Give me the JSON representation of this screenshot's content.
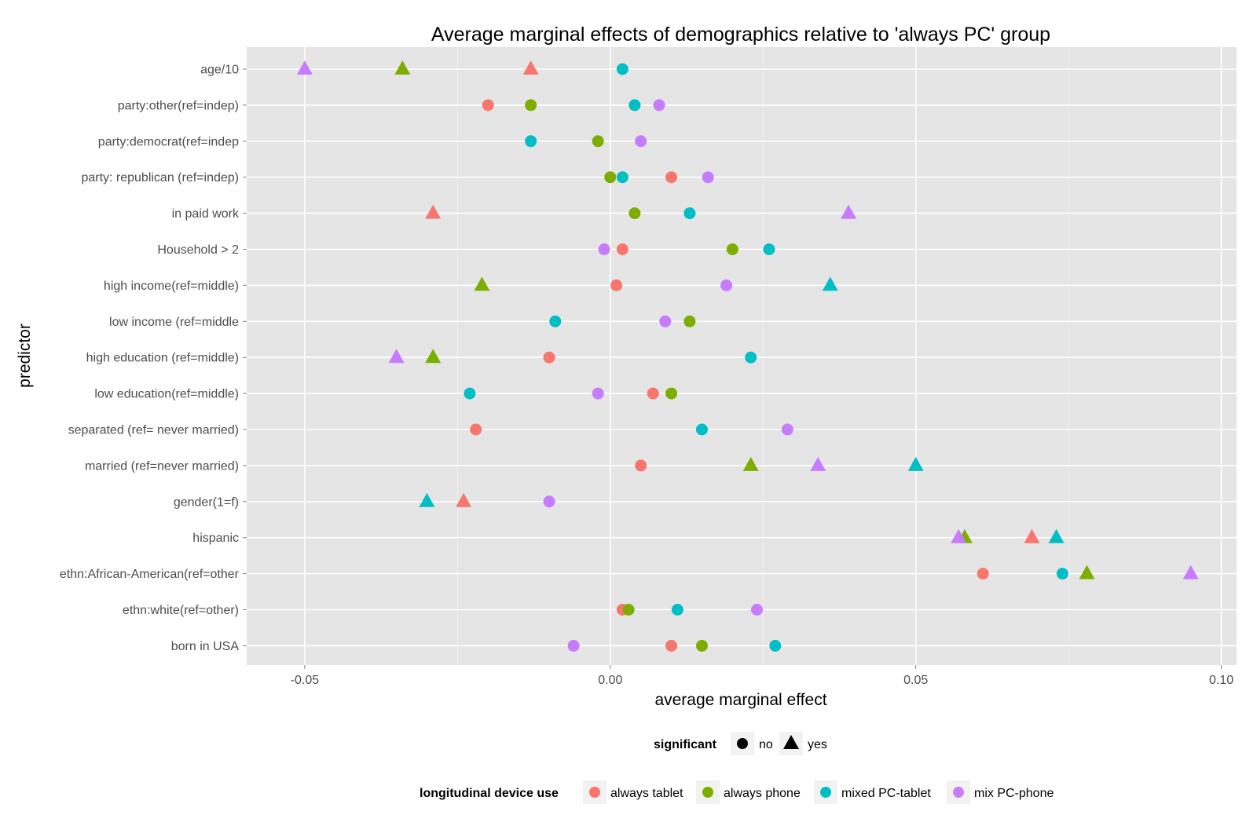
{
  "chart_data": {
    "type": "scatter",
    "title": "Average marginal effects of demographics relative to 'always PC' group",
    "xlabel": "average marginal effect",
    "ylabel": "predictor",
    "xlim": [
      -0.0595,
      0.1025
    ],
    "xticks": [
      -0.05,
      0.0,
      0.05,
      0.1
    ],
    "xtick_labels": [
      "-0.05",
      "0.00",
      "0.05",
      "0.10"
    ],
    "grid": true,
    "legend_position": "bottom",
    "categories": [
      "age/10",
      "party:other(ref=indep)",
      "party:democrat(ref=indep",
      "party: republican (ref=indep)",
      "in paid work",
      "Household > 2",
      "high income(ref=middle)",
      "low income (ref=middle",
      "high education (ref=middle)",
      "low education(ref=middle)",
      "separated (ref= never married)",
      "married (ref=never married)",
      "gender(1=f)",
      "hispanic",
      "ethn:African-American(ref=other",
      "ethn:white(ref=other)",
      "born in USA"
    ],
    "series": [
      {
        "name": "always tablet",
        "color": "#f8766d",
        "points": [
          {
            "category": "age/10",
            "value": -0.013,
            "significant": "yes"
          },
          {
            "category": "party:other(ref=indep)",
            "value": -0.02,
            "significant": "no"
          },
          {
            "category": "party: republican (ref=indep)",
            "value": 0.01,
            "significant": "no"
          },
          {
            "category": "in paid work",
            "value": -0.029,
            "significant": "yes"
          },
          {
            "category": "Household > 2",
            "value": 0.002,
            "significant": "no"
          },
          {
            "category": "high income(ref=middle)",
            "value": 0.001,
            "significant": "no"
          },
          {
            "category": "high education (ref=middle)",
            "value": -0.01,
            "significant": "no"
          },
          {
            "category": "low education(ref=middle)",
            "value": 0.007,
            "significant": "no"
          },
          {
            "category": "separated (ref= never married)",
            "value": -0.022,
            "significant": "no"
          },
          {
            "category": "married (ref=never married)",
            "value": 0.005,
            "significant": "no"
          },
          {
            "category": "gender(1=f)",
            "value": -0.024,
            "significant": "yes"
          },
          {
            "category": "hispanic",
            "value": 0.069,
            "significant": "yes"
          },
          {
            "category": "ethn:African-American(ref=other",
            "value": 0.061,
            "significant": "no"
          },
          {
            "category": "ethn:white(ref=other)",
            "value": 0.002,
            "significant": "no"
          },
          {
            "category": "born in USA",
            "value": 0.01,
            "significant": "no"
          }
        ]
      },
      {
        "name": "always phone",
        "color": "#7cae00",
        "points": [
          {
            "category": "age/10",
            "value": -0.034,
            "significant": "yes"
          },
          {
            "category": "party:other(ref=indep)",
            "value": -0.013,
            "significant": "no"
          },
          {
            "category": "party:democrat(ref=indep",
            "value": -0.002,
            "significant": "no"
          },
          {
            "category": "party: republican (ref=indep)",
            "value": 0.0,
            "significant": "no"
          },
          {
            "category": "in paid work",
            "value": 0.004,
            "significant": "no"
          },
          {
            "category": "Household > 2",
            "value": 0.02,
            "significant": "no"
          },
          {
            "category": "high income(ref=middle)",
            "value": -0.021,
            "significant": "yes"
          },
          {
            "category": "low income (ref=middle",
            "value": 0.013,
            "significant": "no"
          },
          {
            "category": "high education (ref=middle)",
            "value": -0.029,
            "significant": "yes"
          },
          {
            "category": "low education(ref=middle)",
            "value": 0.01,
            "significant": "no"
          },
          {
            "category": "married (ref=never married)",
            "value": 0.023,
            "significant": "yes"
          },
          {
            "category": "hispanic",
            "value": 0.058,
            "significant": "yes"
          },
          {
            "category": "ethn:African-American(ref=other",
            "value": 0.078,
            "significant": "yes"
          },
          {
            "category": "ethn:white(ref=other)",
            "value": 0.003,
            "significant": "no"
          },
          {
            "category": "born in USA",
            "value": 0.015,
            "significant": "no"
          }
        ]
      },
      {
        "name": "mixed PC-tablet",
        "color": "#00bfc4",
        "points": [
          {
            "category": "age/10",
            "value": 0.002,
            "significant": "no"
          },
          {
            "category": "party:other(ref=indep)",
            "value": 0.004,
            "significant": "no"
          },
          {
            "category": "party:democrat(ref=indep",
            "value": -0.013,
            "significant": "no"
          },
          {
            "category": "party: republican (ref=indep)",
            "value": 0.002,
            "significant": "no"
          },
          {
            "category": "in paid work",
            "value": 0.013,
            "significant": "no"
          },
          {
            "category": "Household > 2",
            "value": 0.026,
            "significant": "no"
          },
          {
            "category": "high income(ref=middle)",
            "value": 0.036,
            "significant": "yes"
          },
          {
            "category": "low income (ref=middle",
            "value": -0.009,
            "significant": "no"
          },
          {
            "category": "high education (ref=middle)",
            "value": 0.023,
            "significant": "no"
          },
          {
            "category": "low education(ref=middle)",
            "value": -0.023,
            "significant": "no"
          },
          {
            "category": "separated (ref= never married)",
            "value": 0.015,
            "significant": "no"
          },
          {
            "category": "married (ref=never married)",
            "value": 0.05,
            "significant": "yes"
          },
          {
            "category": "gender(1=f)",
            "value": -0.03,
            "significant": "yes"
          },
          {
            "category": "hispanic",
            "value": 0.073,
            "significant": "yes"
          },
          {
            "category": "ethn:African-American(ref=other",
            "value": 0.074,
            "significant": "no"
          },
          {
            "category": "ethn:white(ref=other)",
            "value": 0.011,
            "significant": "no"
          },
          {
            "category": "born in USA",
            "value": 0.027,
            "significant": "no"
          }
        ]
      },
      {
        "name": "mix PC-phone",
        "color": "#c77cff",
        "points": [
          {
            "category": "age/10",
            "value": -0.05,
            "significant": "yes"
          },
          {
            "category": "party:other(ref=indep)",
            "value": 0.008,
            "significant": "no"
          },
          {
            "category": "party:democrat(ref=indep",
            "value": 0.005,
            "significant": "no"
          },
          {
            "category": "party: republican (ref=indep)",
            "value": 0.016,
            "significant": "no"
          },
          {
            "category": "in paid work",
            "value": 0.039,
            "significant": "yes"
          },
          {
            "category": "Household > 2",
            "value": -0.001,
            "significant": "no"
          },
          {
            "category": "high income(ref=middle)",
            "value": 0.019,
            "significant": "no"
          },
          {
            "category": "low income (ref=middle",
            "value": 0.009,
            "significant": "no"
          },
          {
            "category": "high education (ref=middle)",
            "value": -0.035,
            "significant": "yes"
          },
          {
            "category": "low education(ref=middle)",
            "value": -0.002,
            "significant": "no"
          },
          {
            "category": "separated (ref= never married)",
            "value": 0.029,
            "significant": "no"
          },
          {
            "category": "married (ref=never married)",
            "value": 0.034,
            "significant": "yes"
          },
          {
            "category": "gender(1=f)",
            "value": -0.01,
            "significant": "no"
          },
          {
            "category": "hispanic",
            "value": 0.057,
            "significant": "yes"
          },
          {
            "category": "ethn:African-American(ref=other",
            "value": 0.095,
            "significant": "yes"
          },
          {
            "category": "ethn:white(ref=other)",
            "value": 0.024,
            "significant": "no"
          },
          {
            "category": "born in USA",
            "value": -0.006,
            "significant": "no"
          }
        ]
      }
    ],
    "legend": {
      "shape_title": "significant",
      "shape_items": [
        {
          "label": "no",
          "shape": "circle"
        },
        {
          "label": "yes",
          "shape": "triangle"
        }
      ],
      "color_title": "longitudinal device use",
      "color_items": [
        "always tablet",
        "always phone",
        "mixed PC-tablet",
        "mix PC-phone"
      ]
    }
  }
}
